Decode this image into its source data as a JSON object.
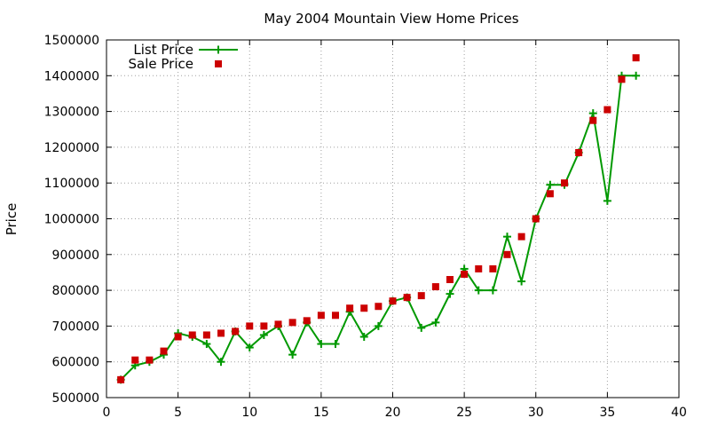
{
  "chart_data": {
    "type": "line",
    "title": "May 2004 Mountain View Home Prices",
    "xlabel": "",
    "ylabel": "Price",
    "xlim": [
      0,
      40
    ],
    "ylim": [
      500000,
      1500000
    ],
    "xticks": [
      0,
      5,
      10,
      15,
      20,
      25,
      30,
      35,
      40
    ],
    "yticks": [
      500000,
      600000,
      700000,
      800000,
      900000,
      1000000,
      1100000,
      1200000,
      1300000,
      1400000,
      1500000
    ],
    "grid": true,
    "legend_position": "top-left",
    "x": [
      1,
      2,
      3,
      4,
      5,
      6,
      7,
      8,
      9,
      10,
      11,
      12,
      13,
      14,
      15,
      16,
      17,
      18,
      19,
      20,
      21,
      22,
      23,
      24,
      25,
      26,
      27,
      28,
      29,
      30,
      31,
      32,
      33,
      34,
      35,
      36,
      37
    ],
    "series": [
      {
        "name": "List Price",
        "style": "linespoints",
        "color": "#009900",
        "values": [
          550000,
          590000,
          600000,
          620000,
          680000,
          670000,
          650000,
          600000,
          685000,
          640000,
          675000,
          700000,
          620000,
          710000,
          650000,
          650000,
          740000,
          670000,
          700000,
          770000,
          780000,
          695000,
          710000,
          790000,
          860000,
          800000,
          800000,
          950000,
          825000,
          1000000,
          1095000,
          1095000,
          1185000,
          1295000,
          1050000,
          1400000,
          1400000
        ]
      },
      {
        "name": "Sale Price",
        "style": "points",
        "color": "#cc0000",
        "values": [
          550000,
          605000,
          605000,
          630000,
          670000,
          675000,
          675000,
          680000,
          685000,
          700000,
          700000,
          705000,
          710000,
          715000,
          730000,
          730000,
          750000,
          750000,
          755000,
          770000,
          780000,
          785000,
          810000,
          830000,
          845000,
          860000,
          860000,
          900000,
          950000,
          1000000,
          1070000,
          1100000,
          1185000,
          1275000,
          1305000,
          1390000,
          1450000
        ]
      }
    ]
  }
}
